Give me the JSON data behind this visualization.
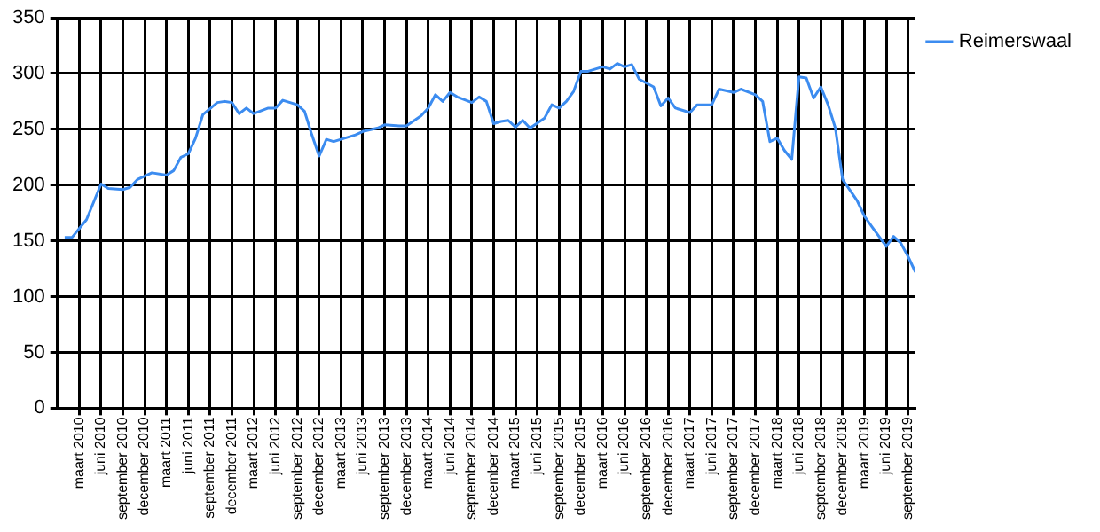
{
  "chart_data": {
    "type": "line",
    "legend": "top right",
    "grid": true,
    "marker": "none",
    "line_style": "solid",
    "xlim": [
      "2009-12",
      "2019-10"
    ],
    "ylim": [
      0,
      350
    ],
    "yticks": [
      0,
      50,
      100,
      150,
      200,
      250,
      300,
      350
    ],
    "xticks": [
      {
        "value": "2010-03",
        "label": "maart 2010"
      },
      {
        "value": "2010-06",
        "label": "juni 2010"
      },
      {
        "value": "2010-09",
        "label": "september 2010"
      },
      {
        "value": "2010-12",
        "label": "december 2010"
      },
      {
        "value": "2011-03",
        "label": "maart 2011"
      },
      {
        "value": "2011-06",
        "label": "juni 2011"
      },
      {
        "value": "2011-09",
        "label": "september 2011"
      },
      {
        "value": "2011-12",
        "label": "december 2011"
      },
      {
        "value": "2012-03",
        "label": "maart 2012"
      },
      {
        "value": "2012-06",
        "label": "juni 2012"
      },
      {
        "value": "2012-09",
        "label": "september 2012"
      },
      {
        "value": "2012-12",
        "label": "december 2012"
      },
      {
        "value": "2013-03",
        "label": "maart 2013"
      },
      {
        "value": "2013-06",
        "label": "juni 2013"
      },
      {
        "value": "2013-09",
        "label": "september 2013"
      },
      {
        "value": "2013-12",
        "label": "december 2013"
      },
      {
        "value": "2014-03",
        "label": "maart 2014"
      },
      {
        "value": "2014-06",
        "label": "juni 2014"
      },
      {
        "value": "2014-09",
        "label": "september 2014"
      },
      {
        "value": "2014-12",
        "label": "december 2014"
      },
      {
        "value": "2015-03",
        "label": "maart 2015"
      },
      {
        "value": "2015-06",
        "label": "juni 2015"
      },
      {
        "value": "2015-09",
        "label": "september 2015"
      },
      {
        "value": "2015-12",
        "label": "december 2015"
      },
      {
        "value": "2016-03",
        "label": "maart 2016"
      },
      {
        "value": "2016-06",
        "label": "juni 2016"
      },
      {
        "value": "2016-09",
        "label": "september 2016"
      },
      {
        "value": "2016-12",
        "label": "december 2016"
      },
      {
        "value": "2017-03",
        "label": "maart 2017"
      },
      {
        "value": "2017-06",
        "label": "juni 2017"
      },
      {
        "value": "2017-09",
        "label": "september 2017"
      },
      {
        "value": "2017-12",
        "label": "december 2017"
      },
      {
        "value": "2018-03",
        "label": "maart 2018"
      },
      {
        "value": "2018-06",
        "label": "juni 2018"
      },
      {
        "value": "2018-09",
        "label": "september 2018"
      },
      {
        "value": "2018-12",
        "label": "december 2018"
      },
      {
        "value": "2019-03",
        "label": "maart 2019"
      },
      {
        "value": "2019-06",
        "label": "juni 2019"
      },
      {
        "value": "2019-09",
        "label": "september 2019"
      }
    ],
    "series": [
      {
        "name": "Reimerswaal",
        "color": "#3c8cf0",
        "x": [
          "2010-01",
          "2010-02",
          "2010-04",
          "2010-06",
          "2010-07",
          "2010-09",
          "2010-10",
          "2010-11",
          "2010-12",
          "2011-01",
          "2011-03",
          "2011-04",
          "2011-05",
          "2011-06",
          "2011-07",
          "2011-08",
          "2011-10",
          "2011-11",
          "2011-12",
          "2012-01",
          "2012-02",
          "2012-03",
          "2012-05",
          "2012-06",
          "2012-07",
          "2012-09",
          "2012-10",
          "2012-11",
          "2012-12",
          "2013-01",
          "2013-02",
          "2013-03",
          "2013-05",
          "2013-06",
          "2013-08",
          "2013-09",
          "2013-11",
          "2013-12",
          "2014-02",
          "2014-03",
          "2014-04",
          "2014-05",
          "2014-06",
          "2014-07",
          "2014-09",
          "2014-10",
          "2014-11",
          "2014-12",
          "2015-01",
          "2015-02",
          "2015-03",
          "2015-04",
          "2015-05",
          "2015-07",
          "2015-08",
          "2015-09",
          "2015-10",
          "2015-11",
          "2015-12",
          "2016-01",
          "2016-03",
          "2016-04",
          "2016-05",
          "2016-06",
          "2016-07",
          "2016-08",
          "2016-10",
          "2016-11",
          "2016-12",
          "2017-01",
          "2017-03",
          "2017-04",
          "2017-06",
          "2017-07",
          "2017-09",
          "2017-10",
          "2017-12",
          "2018-01",
          "2018-02",
          "2018-03",
          "2018-04",
          "2018-05",
          "2018-06",
          "2018-07",
          "2018-08",
          "2018-09",
          "2018-10",
          "2018-11",
          "2018-12",
          "2019-02",
          "2019-03",
          "2019-04",
          "2019-05",
          "2019-06",
          "2019-07",
          "2019-08",
          "2019-09",
          "2019-10"
        ],
        "values": [
          153,
          153,
          169,
          201,
          197,
          196,
          198,
          205,
          208,
          211,
          209,
          213,
          225,
          228,
          242,
          263,
          274,
          275,
          274,
          264,
          269,
          264,
          269,
          269,
          276,
          272,
          266,
          245,
          226,
          241,
          239,
          241,
          245,
          248,
          251,
          254,
          253,
          253,
          262,
          269,
          281,
          275,
          283,
          279,
          274,
          279,
          275,
          255,
          257,
          258,
          252,
          258,
          251,
          260,
          272,
          269,
          275,
          284,
          302,
          302,
          306,
          304,
          309,
          306,
          308,
          295,
          288,
          271,
          278,
          269,
          265,
          272,
          272,
          286,
          283,
          286,
          281,
          275,
          239,
          242,
          231,
          223,
          297,
          296,
          278,
          288,
          272,
          251,
          205,
          186,
          172,
          163,
          154,
          145,
          154,
          148,
          136,
          122
        ]
      }
    ]
  }
}
